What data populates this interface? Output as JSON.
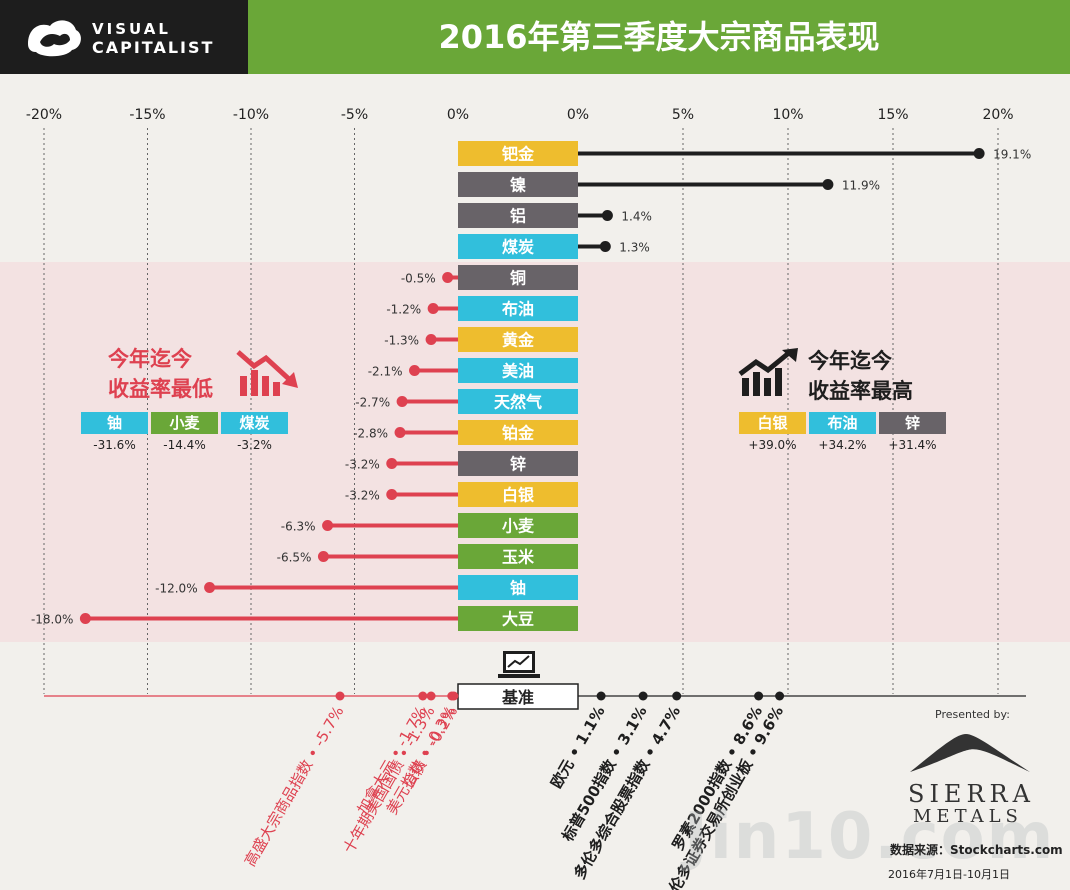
{
  "header": {
    "logo_line1": "VISUAL",
    "logo_line2": "CAPITALIST",
    "title": "2016年第三季度大宗商品表现"
  },
  "colors": {
    "gold": "#eebd2e",
    "gray": "#686368",
    "cyan": "#31bfdc",
    "green": "#6aa738",
    "positive_line": "#1e1e1e",
    "negative_line": "#de4150",
    "header_green": "#6aa738"
  },
  "chart_data": [
    {
      "type": "bar",
      "title": "",
      "axis_ticks_left": [
        "-20%",
        "-15%",
        "-10%",
        "-5%",
        "0%"
      ],
      "axis_ticks_right": [
        "0%",
        "5%",
        "10%",
        "15%",
        "20%"
      ],
      "xlim": [
        -20,
        20
      ],
      "series": [
        {
          "category": "钯金",
          "value": 19.1,
          "label": "19.1%",
          "color": "gold"
        },
        {
          "category": "镍",
          "value": 11.9,
          "label": "11.9%",
          "color": "gray"
        },
        {
          "category": "铝",
          "value": 1.4,
          "label": "1.4%",
          "color": "gray"
        },
        {
          "category": "煤炭",
          "value": 1.3,
          "label": "1.3%",
          "color": "cyan"
        },
        {
          "category": "铜",
          "value": -0.5,
          "label": "-0.5%",
          "color": "gray"
        },
        {
          "category": "布油",
          "value": -1.2,
          "label": "-1.2%",
          "color": "cyan"
        },
        {
          "category": "黄金",
          "value": -1.3,
          "label": "-1.3%",
          "color": "gold"
        },
        {
          "category": "美油",
          "value": -2.1,
          "label": "-2.1%",
          "color": "cyan"
        },
        {
          "category": "天然气",
          "value": -2.7,
          "label": "-2.7%",
          "color": "cyan"
        },
        {
          "category": "铂金",
          "value": -2.8,
          "label": "-2.8%",
          "color": "gold"
        },
        {
          "category": "锌",
          "value": -3.2,
          "label": "-3.2%",
          "color": "gray"
        },
        {
          "category": "白银",
          "value": -3.2,
          "label": "-3.2%",
          "color": "gold"
        },
        {
          "category": "小麦",
          "value": -6.3,
          "label": "-6.3%",
          "color": "green"
        },
        {
          "category": "玉米",
          "value": -6.5,
          "label": "-6.5%",
          "color": "green"
        },
        {
          "category": "铀",
          "value": -12.0,
          "label": "-12.0%",
          "color": "cyan"
        },
        {
          "category": "大豆",
          "value": -18.0,
          "label": "-18.0%",
          "color": "green"
        }
      ]
    },
    {
      "type": "scatter",
      "baseline_label": "基准",
      "benchmarks": [
        {
          "name": "高盛大宗商品指数",
          "value": -5.7,
          "label": "-5.7%"
        },
        {
          "name": "加拿大元",
          "value": -1.7,
          "label": "-1.7%"
        },
        {
          "name": "十年期美国国债",
          "value": -1.3,
          "label": "-1.3%"
        },
        {
          "name": "美元指数",
          "value": -0.3,
          "label": "-0.3%"
        },
        {
          "name": "公债",
          "value": -0.2,
          "label": "-0.2%"
        },
        {
          "name": "欧元",
          "value": 1.1,
          "label": "1.1%"
        },
        {
          "name": "标普500指数",
          "value": 3.1,
          "label": "3.1%"
        },
        {
          "name": "多伦多综合股票指数",
          "value": 4.7,
          "label": "4.7%"
        },
        {
          "name": "罗素2000指数",
          "value": 8.6,
          "label": "8.6%"
        },
        {
          "name": "多伦多证券交易所创业板",
          "value": 9.6,
          "label": "9.6%"
        }
      ]
    }
  ],
  "ytd_low": {
    "title_line1": "今年迄今",
    "title_line2": "收益率最低",
    "items": [
      {
        "name": "铀",
        "value": "-31.6%",
        "color": "cyan"
      },
      {
        "name": "小麦",
        "value": "-14.4%",
        "color": "green"
      },
      {
        "name": "煤炭",
        "value": "-3.2%",
        "color": "cyan"
      }
    ]
  },
  "ytd_high": {
    "title_line1": "今年迄今",
    "title_line2": "收益率最高",
    "items": [
      {
        "name": "白银",
        "value": "+39.0%",
        "color": "gold"
      },
      {
        "name": "布油",
        "value": "+34.2%",
        "color": "cyan"
      },
      {
        "name": "锌",
        "value": "+31.4%",
        "color": "gray"
      }
    ]
  },
  "footer": {
    "presented_by": "Presented by:",
    "sponsor_line1": "SIERRA",
    "sponsor_line2": "METALS",
    "source": "数据来源：Stockcharts.com",
    "date_range": "2016年7月1日-10月1日",
    "watermark": "Jin10.com"
  }
}
